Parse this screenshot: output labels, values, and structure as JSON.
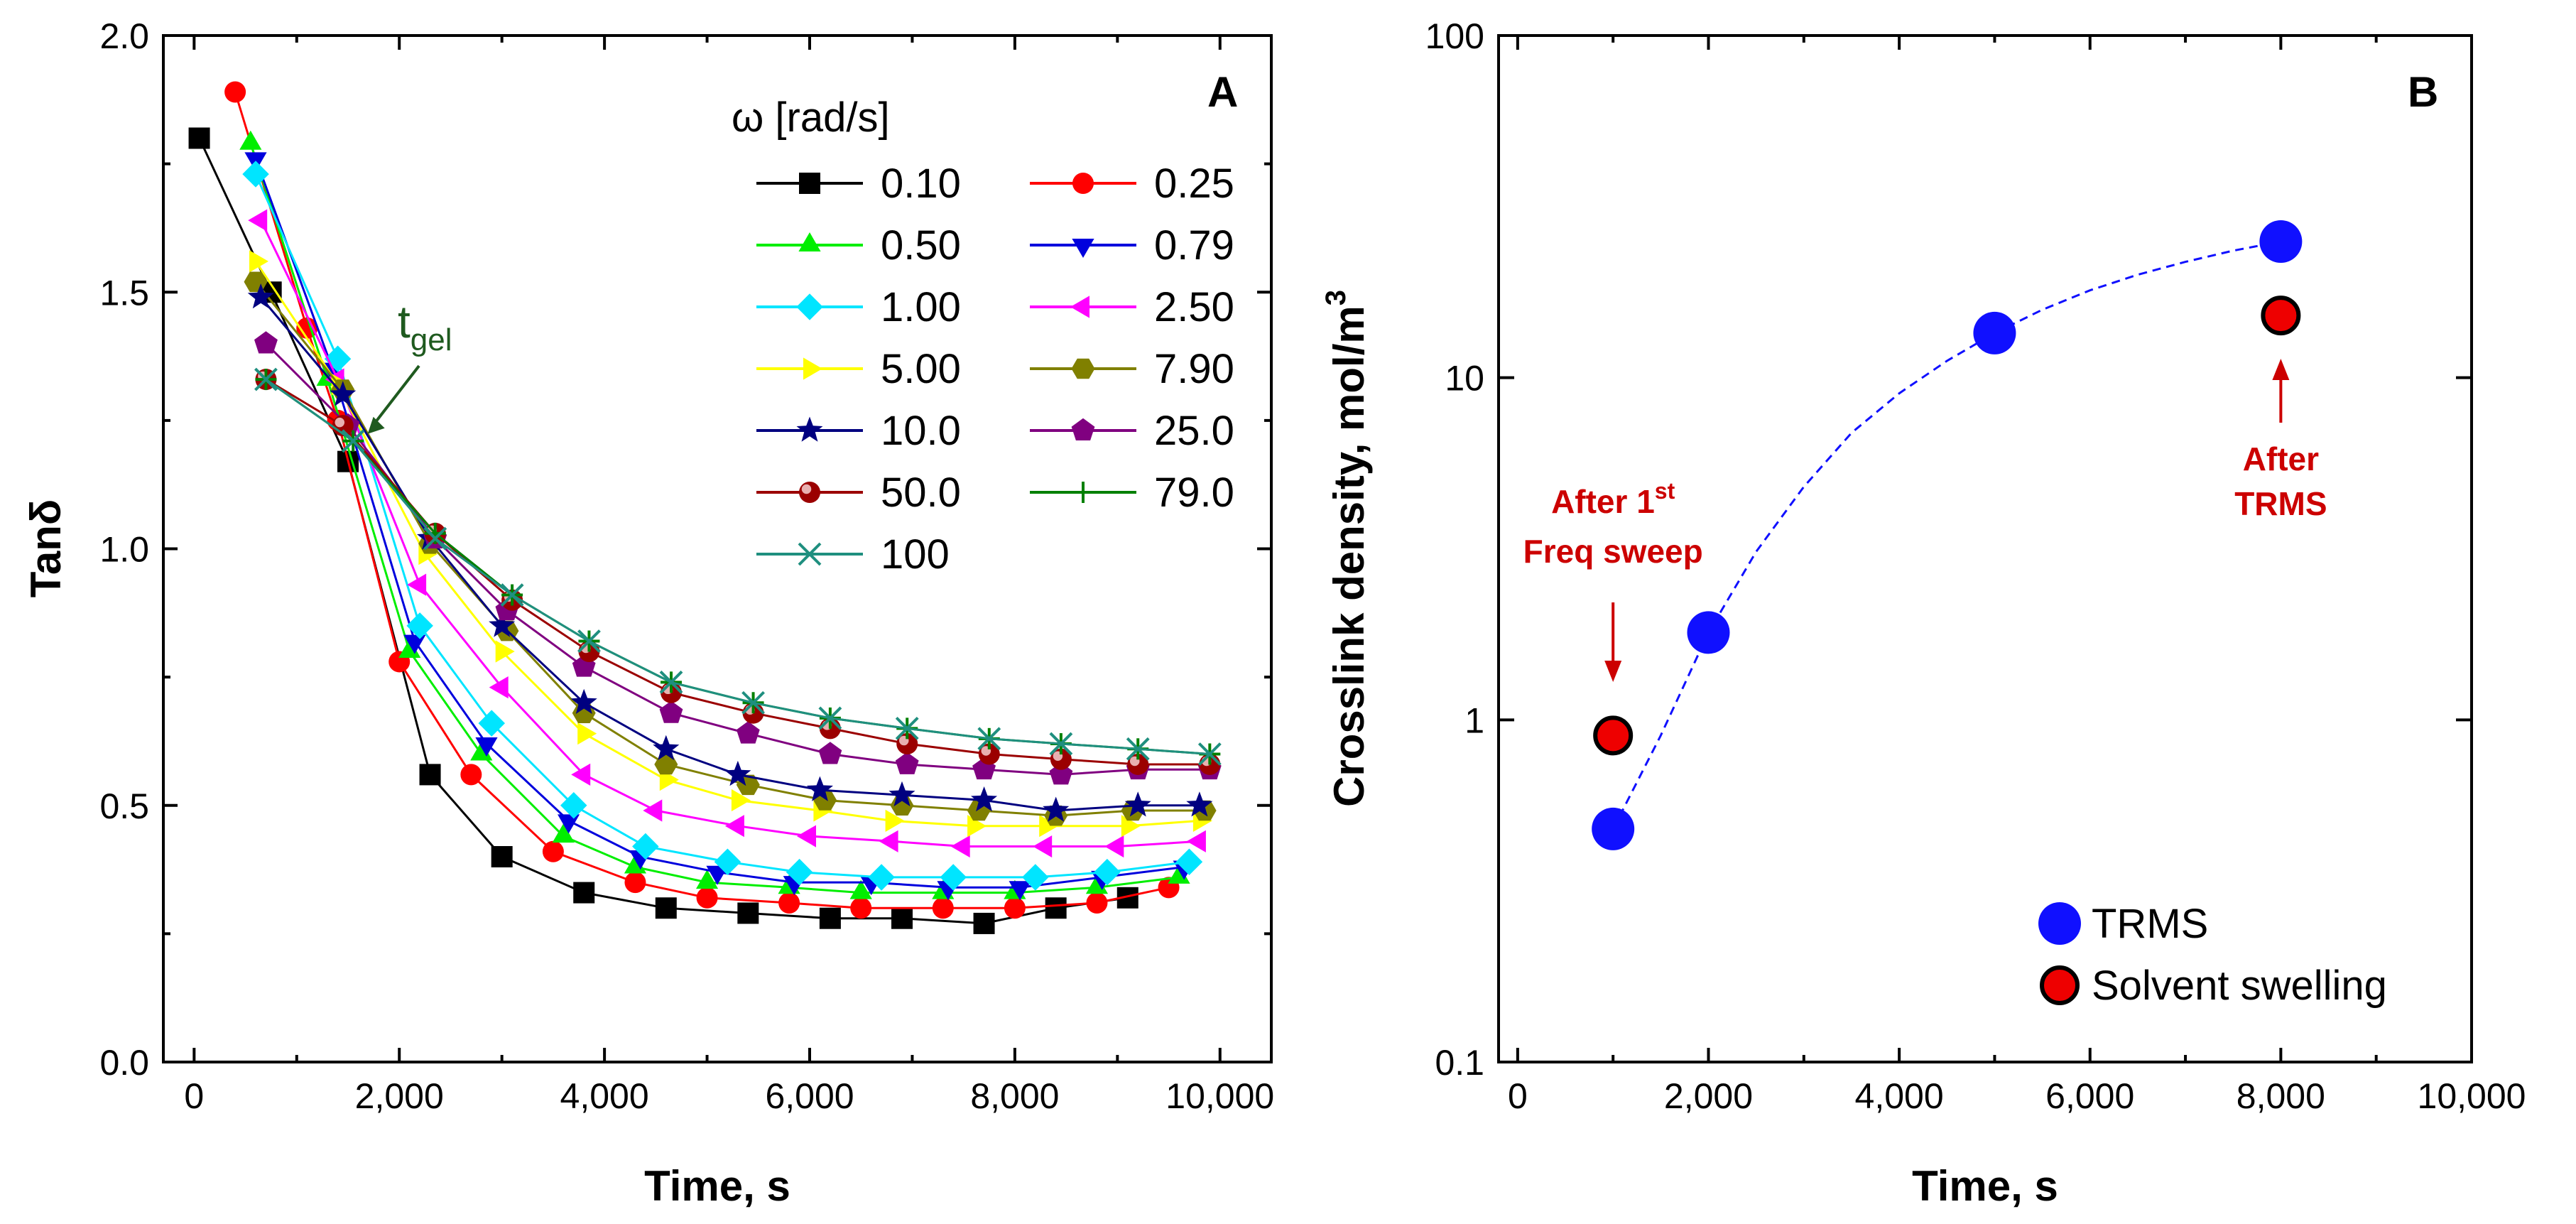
{
  "chart_data": [
    {
      "panel": "A",
      "type": "line",
      "title": "",
      "xlabel": "Time, s",
      "ylabel": "Tanδ",
      "xlim": [
        -300,
        10500
      ],
      "ylim": [
        0,
        2.0
      ],
      "xticks": [
        0,
        2000,
        4000,
        6000,
        8000,
        10000
      ],
      "xtick_labels": [
        "0",
        "2,000",
        "4,000",
        "6,000",
        "8,000",
        "10,000"
      ],
      "yticks": [
        0,
        0.5,
        1.0,
        1.5,
        2.0
      ],
      "ytick_labels": [
        "0.0",
        "0.5",
        "1.0",
        "1.5",
        "2.0"
      ],
      "legend_title": "ω [rad/s]",
      "annotation": {
        "base": "t",
        "sub": "gel",
        "color": "#1f5a1f",
        "arrow_x": 1650,
        "arrow_y": 1.21
      },
      "series": [
        {
          "name": "0.10",
          "color": "#000000",
          "marker": "square",
          "x": [
            50,
            750,
            1500,
            2300,
            3000,
            3800,
            4600,
            5400,
            6200,
            6900,
            7700,
            8400,
            9100
          ],
          "y": [
            1.8,
            1.5,
            1.17,
            0.56,
            0.4,
            0.33,
            0.3,
            0.29,
            0.28,
            0.28,
            0.27,
            0.3,
            0.32
          ]
        },
        {
          "name": "0.25",
          "color": "#ff0000",
          "marker": "circle",
          "x": [
            400,
            1100,
            1400,
            2000,
            2700,
            3500,
            4300,
            5000,
            5800,
            6500,
            7300,
            8000,
            8800,
            9500
          ],
          "y": [
            1.89,
            1.43,
            1.25,
            0.78,
            0.56,
            0.41,
            0.35,
            0.32,
            0.31,
            0.3,
            0.3,
            0.3,
            0.31,
            0.34
          ]
        },
        {
          "name": "0.50",
          "color": "#00ee00",
          "marker": "triangle-up",
          "x": [
            550,
            1300,
            2100,
            2800,
            3600,
            4300,
            5000,
            5800,
            6500,
            7300,
            8000,
            8800,
            9600
          ],
          "y": [
            1.79,
            1.33,
            0.8,
            0.6,
            0.44,
            0.38,
            0.35,
            0.34,
            0.33,
            0.33,
            0.33,
            0.34,
            0.36
          ]
        },
        {
          "name": "0.79",
          "color": "#0000dd",
          "marker": "triangle-down",
          "x": [
            600,
            1350,
            2150,
            2850,
            3650,
            4350,
            5100,
            5850,
            6600,
            7350,
            8050,
            8850,
            9650
          ],
          "y": [
            1.76,
            1.35,
            0.82,
            0.62,
            0.47,
            0.4,
            0.37,
            0.35,
            0.35,
            0.34,
            0.34,
            0.36,
            0.38
          ]
        },
        {
          "name": "1.00",
          "color": "#00e5ff",
          "marker": "diamond",
          "x": [
            600,
            1400,
            2200,
            2900,
            3700,
            4400,
            5200,
            5900,
            6700,
            7400,
            8200,
            8900,
            9700
          ],
          "y": [
            1.73,
            1.37,
            0.85,
            0.66,
            0.5,
            0.42,
            0.39,
            0.37,
            0.36,
            0.36,
            0.36,
            0.37,
            0.39
          ]
        },
        {
          "name": "2.50",
          "color": "#ff00ff",
          "marker": "triangle-left",
          "x": [
            650,
            1400,
            2200,
            3000,
            3800,
            4500,
            5300,
            6000,
            6800,
            7500,
            8300,
            9000,
            9800
          ],
          "y": [
            1.64,
            1.33,
            0.93,
            0.73,
            0.56,
            0.49,
            0.46,
            0.44,
            0.43,
            0.42,
            0.42,
            0.42,
            0.43
          ]
        },
        {
          "name": "5.00",
          "color": "#ffff00",
          "marker": "triangle-right",
          "x": [
            600,
            1400,
            2250,
            3000,
            3800,
            4600,
            5300,
            6100,
            6800,
            7600,
            8300,
            9100,
            9800
          ],
          "y": [
            1.56,
            1.32,
            0.99,
            0.8,
            0.64,
            0.55,
            0.51,
            0.49,
            0.47,
            0.46,
            0.46,
            0.46,
            0.47
          ]
        },
        {
          "name": "7.90",
          "color": "#808000",
          "marker": "hexagon",
          "x": [
            600,
            1450,
            2300,
            3050,
            3800,
            4600,
            5400,
            6150,
            6900,
            7650,
            8400,
            9150,
            9850
          ],
          "y": [
            1.52,
            1.31,
            1.01,
            0.84,
            0.68,
            0.58,
            0.54,
            0.51,
            0.5,
            0.49,
            0.48,
            0.49,
            0.49
          ]
        },
        {
          "name": "10.0",
          "color": "#000080",
          "marker": "star",
          "x": [
            650,
            1450,
            2300,
            3000,
            3800,
            4600,
            5300,
            6100,
            6900,
            7700,
            8400,
            9200,
            9800
          ],
          "y": [
            1.49,
            1.3,
            1.02,
            0.85,
            0.7,
            0.61,
            0.56,
            0.53,
            0.52,
            0.51,
            0.49,
            0.5,
            0.5
          ]
        },
        {
          "name": "25.0",
          "color": "#800080",
          "marker": "pentagon",
          "x": [
            700,
            1500,
            2350,
            3050,
            3800,
            4650,
            5400,
            6200,
            6950,
            7700,
            8450,
            9200,
            9900
          ],
          "y": [
            1.4,
            1.24,
            1.02,
            0.88,
            0.77,
            0.68,
            0.64,
            0.6,
            0.58,
            0.57,
            0.56,
            0.57,
            0.57
          ]
        },
        {
          "name": "50.0",
          "color": "#9b0000",
          "marker": "shaded-circle",
          "x": [
            700,
            1450,
            2350,
            3100,
            3850,
            4650,
            5450,
            6200,
            6950,
            7750,
            8450,
            9200,
            9900
          ],
          "y": [
            1.33,
            1.24,
            1.03,
            0.9,
            0.8,
            0.72,
            0.68,
            0.65,
            0.62,
            0.6,
            0.59,
            0.58,
            0.58
          ]
        },
        {
          "name": "79.0",
          "color": "#008000",
          "marker": "plus",
          "x": [
            700,
            1550,
            2350,
            3100,
            3850,
            4650,
            5450,
            6200,
            6950,
            7750,
            8450,
            9200,
            9900
          ],
          "y": [
            1.33,
            1.21,
            1.03,
            0.91,
            0.82,
            0.74,
            0.7,
            0.67,
            0.65,
            0.63,
            0.62,
            0.61,
            0.6
          ]
        },
        {
          "name": "100",
          "color": "#1f8f7f",
          "marker": "cross",
          "x": [
            700,
            1550,
            2350,
            3100,
            3850,
            4650,
            5450,
            6200,
            6950,
            7750,
            8450,
            9200,
            9900
          ],
          "y": [
            1.33,
            1.21,
            1.02,
            0.91,
            0.82,
            0.74,
            0.7,
            0.67,
            0.65,
            0.63,
            0.62,
            0.61,
            0.6
          ]
        }
      ]
    },
    {
      "panel": "B",
      "type": "scatter",
      "title": "",
      "xlabel": "Time, s",
      "ylabel": "Crosslink density, mol/m",
      "ylabel_sup": "3",
      "yscale": "log",
      "xlim": [
        -200,
        10000
      ],
      "ylim": [
        0.1,
        100
      ],
      "xticks": [
        0,
        2000,
        4000,
        6000,
        8000,
        10000
      ],
      "xtick_labels": [
        "0",
        "2,000",
        "4,000",
        "6,000",
        "8,000",
        "10,000"
      ],
      "yticks": [
        0.1,
        1,
        10,
        100
      ],
      "ytick_labels": [
        "0.1",
        "1",
        "10",
        "100"
      ],
      "series": [
        {
          "name": "TRMS",
          "color": "#1010ff",
          "marker": "circle",
          "x": [
            1000,
            2000,
            5000,
            8000
          ],
          "y": [
            0.48,
            1.8,
            13.5,
            25
          ]
        },
        {
          "name": "Solvent swelling",
          "color": "#ee0000",
          "edge": "#000000",
          "marker": "circle",
          "x": [
            1000,
            8000
          ],
          "y": [
            0.9,
            15.2
          ]
        }
      ],
      "fit_curve": {
        "color": "#1010ff",
        "style": "dashed",
        "x": [
          1000,
          1500,
          2000,
          2500,
          3000,
          3500,
          4000,
          4500,
          5000,
          5500,
          6000,
          6500,
          7000,
          7500,
          8000
        ],
        "y": [
          0.48,
          0.9,
          1.8,
          3.1,
          4.8,
          6.9,
          9.0,
          11.2,
          13.5,
          15.8,
          18.0,
          20.0,
          21.8,
          23.5,
          25.0
        ]
      },
      "annotations": [
        {
          "lines": [
            "After 1",
            "Freq sweep"
          ],
          "sup": "st",
          "color": "#cc0000",
          "arrow_x": 1000,
          "arrow_y": 1.3
        },
        {
          "lines": [
            "After",
            "TRMS"
          ],
          "color": "#cc0000",
          "arrow_x": 8000,
          "arrow_y": 20
        }
      ]
    }
  ]
}
